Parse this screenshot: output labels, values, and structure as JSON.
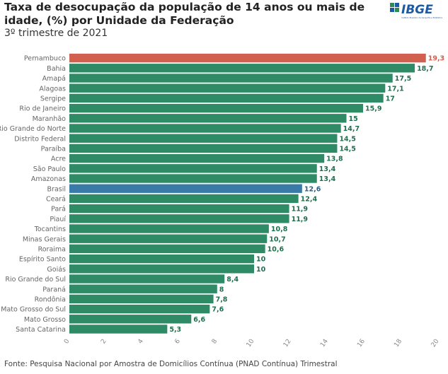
{
  "header": {
    "title": "Taxa de desocupação da população de 14 anos ou mais de idade, (%) por Unidade da Federação",
    "subtitle": "3º trimestre de 2021",
    "logo_text": "IBGE",
    "logo_subtext": "Instituto Brasileiro de Geografia e Estatística"
  },
  "footer": {
    "source": "Fonte: Pesquisa Nacional por Amostra de Domicílios Contínua (PNAD Contínua) Trimestral"
  },
  "colors": {
    "default_bar": "#2e8b66",
    "highlight_top": "#d1604f",
    "highlight_brasil": "#3a7aa8",
    "label_default": "#1f6e4e",
    "label_top": "#d1604f",
    "label_brasil": "#2b5f86",
    "logo_blue": "#1c5aa6",
    "logo_green": "#2e8b57"
  },
  "chart_data": {
    "type": "bar",
    "orientation": "horizontal",
    "categories": [
      "Pernambuco",
      "Bahia",
      "Amapá",
      "Alagoas",
      "Sergipe",
      "Rio de Janeiro",
      "Maranhão",
      "Rio Grande do Norte",
      "Distrito Federal",
      "Paraíba",
      "Acre",
      "São Paulo",
      "Amazonas",
      "Brasil",
      "Ceará",
      "Pará",
      "Piauí",
      "Tocantins",
      "Minas Gerais",
      "Roraima",
      "Espírito Santo",
      "Goiás",
      "Rio Grande do Sul",
      "Paraná",
      "Rondônia",
      "Mato Grosso do Sul",
      "Mato Grosso",
      "Santa Catarina"
    ],
    "values": [
      19.3,
      18.7,
      17.5,
      17.1,
      17,
      15.9,
      15,
      14.7,
      14.5,
      14.5,
      13.8,
      13.4,
      13.4,
      12.6,
      12.4,
      11.9,
      11.9,
      10.8,
      10.7,
      10.6,
      10,
      10,
      8.4,
      8,
      7.8,
      7.6,
      6.6,
      5.3
    ],
    "value_labels": [
      "19,3",
      "18,7",
      "17,5",
      "17,1",
      "17",
      "15,9",
      "15",
      "14,7",
      "14,5",
      "14,5",
      "13,8",
      "13,4",
      "13,4",
      "12,6",
      "12,4",
      "11,9",
      "11,9",
      "10,8",
      "10,7",
      "10,6",
      "10",
      "10",
      "8,4",
      "8",
      "7,8",
      "7,6",
      "6,6",
      "5,3"
    ],
    "highlight": {
      "Pernambuco": "top",
      "Brasil": "brasil"
    },
    "xlim": [
      0,
      20
    ],
    "x_ticks": [
      "0",
      "2",
      "4",
      "6",
      "8",
      "10",
      "12",
      "14",
      "16",
      "18",
      "20"
    ],
    "xlabel": "",
    "ylabel": "",
    "grid": false
  }
}
